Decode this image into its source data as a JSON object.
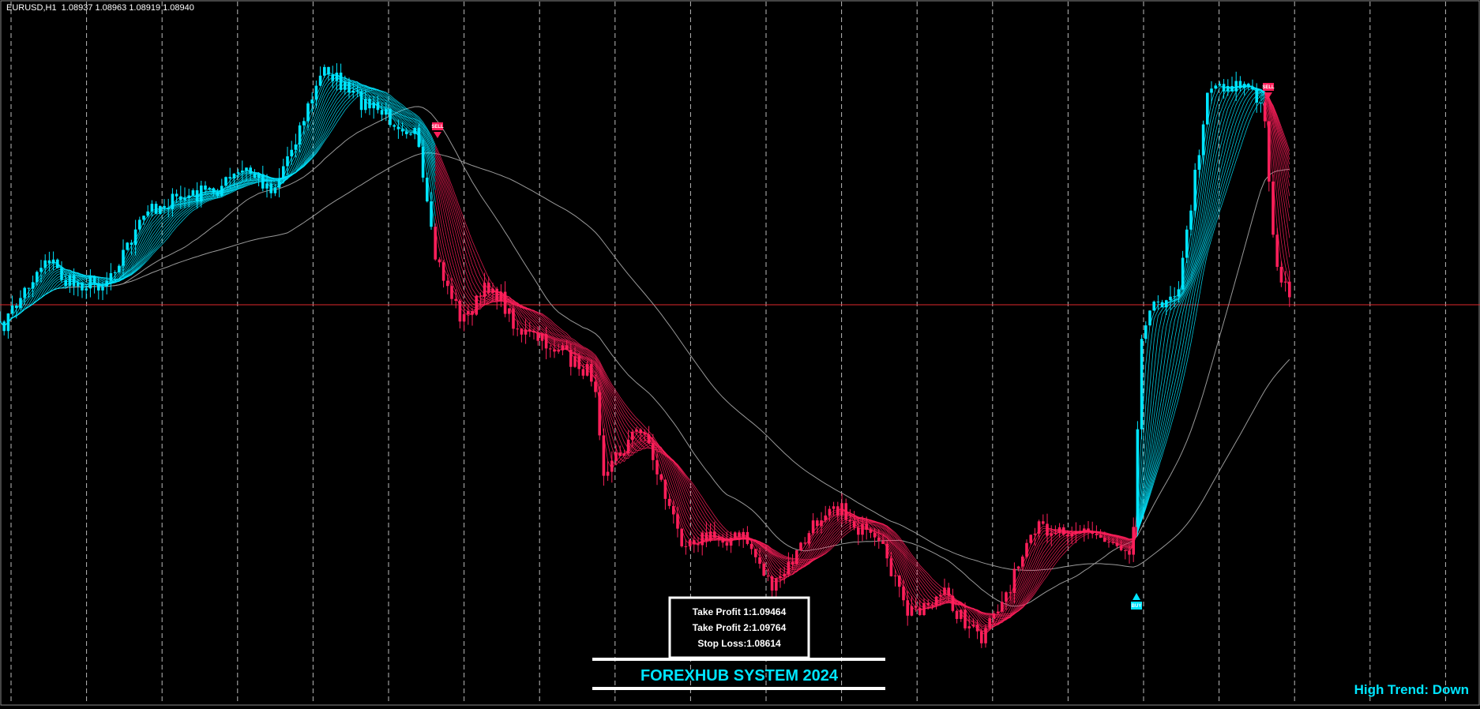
{
  "header": {
    "symbol_info": "EURUSD,H1  1.08937 1.08963 1.08919 1.08940"
  },
  "panel": {
    "take_profit_1": "Take Profit 1:1.09464",
    "take_profit_2": "Take Profit 2:1.09764",
    "stop_loss": "Stop Loss:1.08614"
  },
  "banner": {
    "title": "FOREXHUB SYSTEM 2024"
  },
  "trend": "High Trend: Down",
  "signals": [
    {
      "label": "SELL"
    },
    {
      "label": "SELL"
    },
    {
      "label": "BUY"
    }
  ]
}
